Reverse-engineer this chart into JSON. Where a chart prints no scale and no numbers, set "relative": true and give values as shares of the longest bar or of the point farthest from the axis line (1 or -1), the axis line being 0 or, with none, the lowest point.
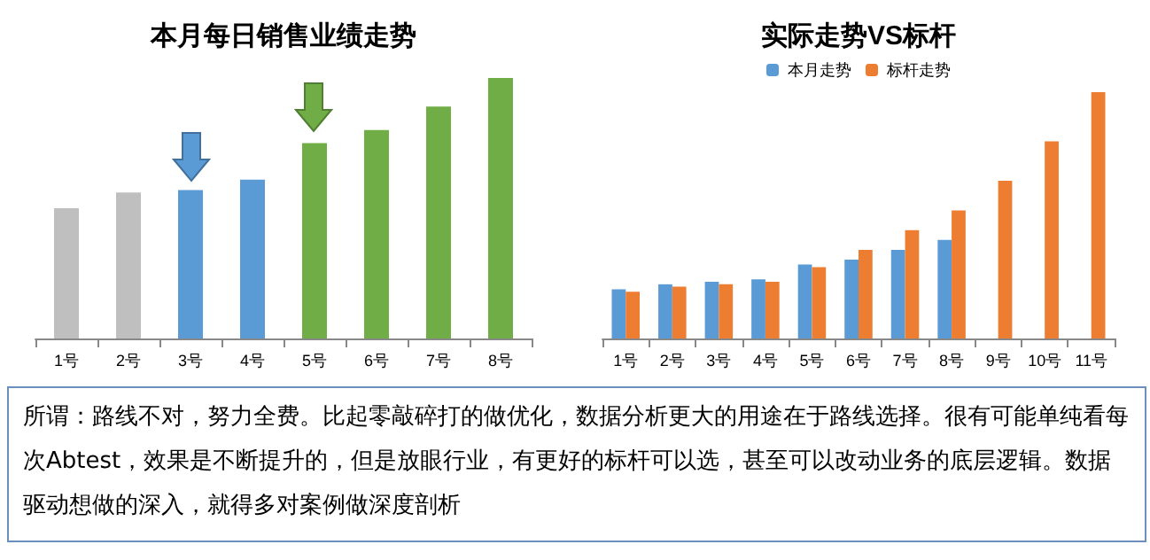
{
  "chart_data": [
    {
      "type": "bar",
      "title": "本月每日销售业绩走势",
      "relative": true,
      "categories": [
        "1号",
        "2号",
        "3号",
        "4号",
        "5号",
        "6号",
        "7号",
        "8号"
      ],
      "values": [
        0.5,
        0.56,
        0.57,
        0.61,
        0.75,
        0.8,
        0.89,
        1
      ],
      "colors": [
        "#bfbfbf",
        "#bfbfbf",
        "#5b9bd5",
        "#5b9bd5",
        "#70ad47",
        "#70ad47",
        "#70ad47",
        "#70ad47"
      ],
      "legend": false
    },
    {
      "type": "bar",
      "title": "实际走势VS标杆",
      "relative": true,
      "categories": [
        "1号",
        "2号",
        "3号",
        "4号",
        "5号",
        "6号",
        "7号",
        "8号",
        "9号",
        "10号",
        "11号"
      ],
      "series": [
        {
          "name": "本月走势",
          "color": "#5b9bd5",
          "values": [
            0.2,
            0.22,
            0.23,
            0.24,
            0.3,
            0.32,
            0.36,
            0.4,
            null,
            null,
            null
          ]
        },
        {
          "name": "标杆走势",
          "color": "#ed7d31",
          "values": [
            0.19,
            0.21,
            0.22,
            0.23,
            0.29,
            0.36,
            0.44,
            0.52,
            0.64,
            0.8,
            1
          ]
        }
      ],
      "legend": "top"
    },
    {
      "type": "other",
      "annotations": [
        "所谓：路线不对，努力全费。比起零敲碎打的做优化，数据分析更大的用途在于路线选择。很有可能单纯看每次Abtest，效果是不断提升的，但是放眼行业，有更好的标杆可以选，甚至可以改动业务的底层逻辑。数据驱动想做的深入，就得多对案例做深度剖析"
      ]
    }
  ]
}
